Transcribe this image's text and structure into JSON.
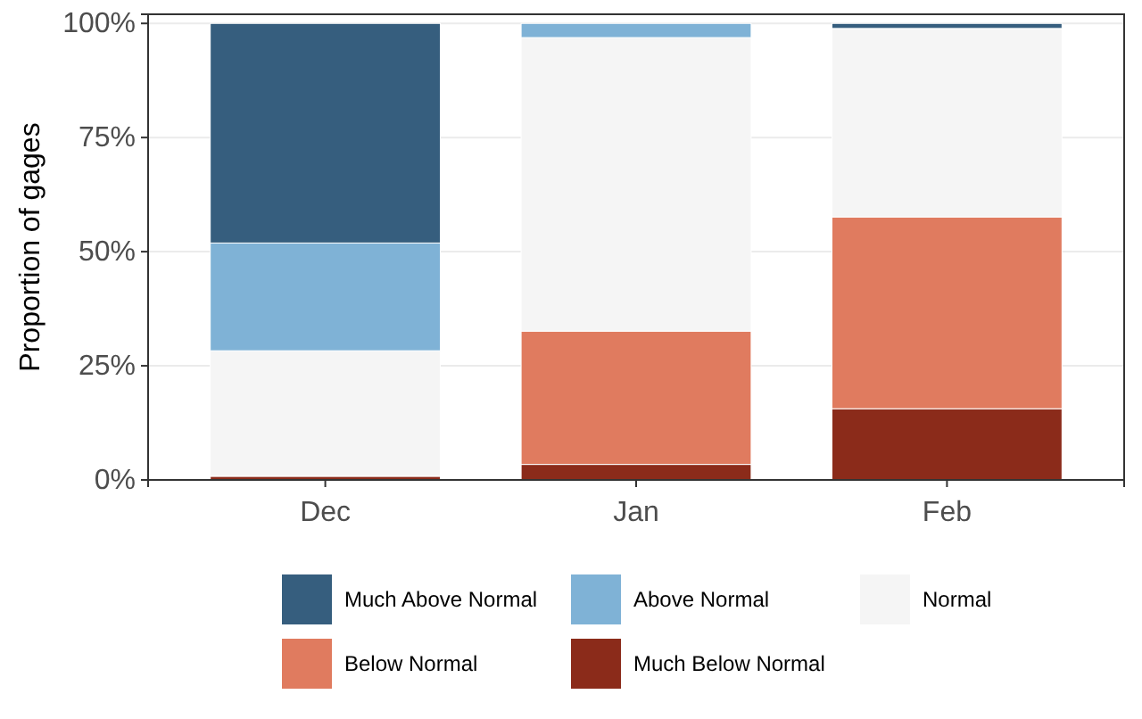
{
  "chart_data": {
    "type": "bar",
    "stacked": true,
    "ylabel": "Proportion of gages",
    "categories": [
      "Dec",
      "Jan",
      "Feb"
    ],
    "series": [
      {
        "name": "Much Below Normal",
        "color": "#8b2b1a",
        "values": [
          0.8,
          3.4,
          15.6
        ]
      },
      {
        "name": "Below Normal",
        "color": "#e07b5f",
        "values": [
          0,
          29.2,
          42.0
        ]
      },
      {
        "name": "Normal",
        "color": "#f5f5f5",
        "values": [
          27.5,
          64.3,
          41.3
        ]
      },
      {
        "name": "Above Normal",
        "color": "#7fb2d6",
        "values": [
          23.6,
          3.1,
          0
        ]
      },
      {
        "name": "Much Above Normal",
        "color": "#365e7e",
        "values": [
          48.1,
          0,
          1.1
        ]
      }
    ],
    "ylim": [
      0,
      102
    ],
    "yticks": [
      {
        "value": 0,
        "label": "0%"
      },
      {
        "value": 25,
        "label": "25%"
      },
      {
        "value": 50,
        "label": "50%"
      },
      {
        "value": 75,
        "label": "75%"
      },
      {
        "value": 100,
        "label": "100%"
      }
    ],
    "grid": "y",
    "legend": "bottom"
  }
}
